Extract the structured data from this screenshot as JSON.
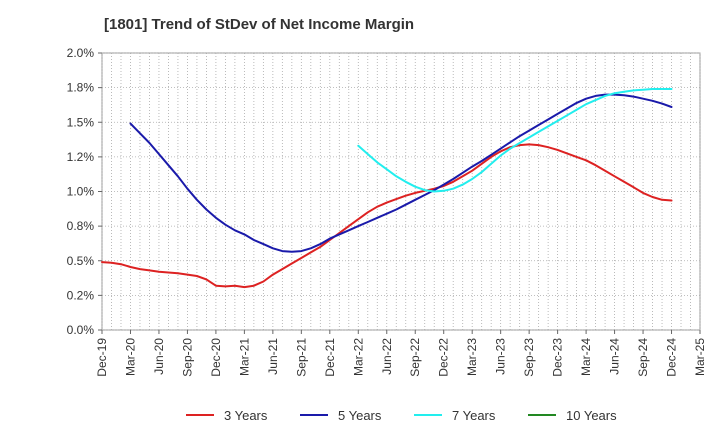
{
  "chart_data": {
    "type": "line",
    "title": "[1801]  Trend of StDev of Net Income Margin",
    "xlabel": "",
    "ylabel": "",
    "x_ticks": [
      "Dec-19",
      "Mar-20",
      "Jun-20",
      "Sep-20",
      "Dec-20",
      "Mar-21",
      "Jun-21",
      "Sep-21",
      "Dec-21",
      "Mar-22",
      "Jun-22",
      "Sep-22",
      "Dec-22",
      "Mar-23",
      "Jun-23",
      "Sep-23",
      "Dec-23",
      "Mar-24",
      "Jun-24",
      "Sep-24",
      "Dec-24",
      "Mar-25"
    ],
    "y_ticks": [
      "0.0%",
      "0.2%",
      "0.5%",
      "0.8%",
      "1.0%",
      "1.2%",
      "1.5%",
      "1.8%",
      "2.0%"
    ],
    "ylim": [
      0,
      2.0
    ],
    "grid": true,
    "legend_position": "bottom",
    "series": [
      {
        "name": "3 Years",
        "color": "#dd2222",
        "x": [
          "Dec-19",
          "Jan-20",
          "Feb-20",
          "Mar-20",
          "Apr-20",
          "May-20",
          "Jun-20",
          "Jul-20",
          "Aug-20",
          "Sep-20",
          "Oct-20",
          "Nov-20",
          "Dec-20",
          "Jan-21",
          "Feb-21",
          "Mar-21",
          "Apr-21",
          "May-21",
          "Jun-21",
          "Jul-21",
          "Aug-21",
          "Sep-21",
          "Oct-21",
          "Nov-21",
          "Dec-21",
          "Jan-22",
          "Feb-22",
          "Mar-22",
          "Apr-22",
          "May-22",
          "Jun-22",
          "Jul-22",
          "Aug-22",
          "Sep-22",
          "Oct-22",
          "Nov-22",
          "Dec-22",
          "Jan-23",
          "Feb-23",
          "Mar-23",
          "Apr-23",
          "May-23",
          "Jun-23",
          "Jul-23",
          "Aug-23",
          "Sep-23",
          "Oct-23",
          "Nov-23",
          "Dec-23",
          "Jan-24",
          "Feb-24",
          "Mar-24",
          "Apr-24",
          "May-24",
          "Jun-24",
          "Jul-24",
          "Aug-24",
          "Sep-24",
          "Oct-24",
          "Nov-24",
          "Dec-24"
        ],
        "values": [
          0.49,
          0.485,
          0.475,
          0.455,
          0.44,
          0.43,
          0.42,
          0.415,
          0.41,
          0.4,
          0.39,
          0.365,
          0.32,
          0.315,
          0.32,
          0.31,
          0.32,
          0.35,
          0.4,
          0.44,
          0.48,
          0.52,
          0.56,
          0.6,
          0.65,
          0.7,
          0.75,
          0.8,
          0.85,
          0.89,
          0.92,
          0.945,
          0.97,
          0.99,
          1.005,
          1.02,
          1.04,
          1.07,
          1.11,
          1.15,
          1.2,
          1.25,
          1.29,
          1.32,
          1.335,
          1.34,
          1.335,
          1.32,
          1.3,
          1.275,
          1.25,
          1.225,
          1.19,
          1.15,
          1.11,
          1.07,
          1.03,
          0.99,
          0.96,
          0.94,
          0.935
        ]
      },
      {
        "name": "5 Years",
        "color": "#1a1aaa",
        "x": [
          "Mar-20",
          "Apr-20",
          "May-20",
          "Jun-20",
          "Jul-20",
          "Aug-20",
          "Sep-20",
          "Oct-20",
          "Nov-20",
          "Dec-20",
          "Jan-21",
          "Feb-21",
          "Mar-21",
          "Apr-21",
          "May-21",
          "Jun-21",
          "Jul-21",
          "Aug-21",
          "Sep-21",
          "Oct-21",
          "Nov-21",
          "Dec-21",
          "Jan-22",
          "Feb-22",
          "Mar-22",
          "Apr-22",
          "May-22",
          "Jun-22",
          "Jul-22",
          "Aug-22",
          "Sep-22",
          "Oct-22",
          "Nov-22",
          "Dec-22",
          "Jan-23",
          "Feb-23",
          "Mar-23",
          "Apr-23",
          "May-23",
          "Jun-23",
          "Jul-23",
          "Aug-23",
          "Sep-23",
          "Oct-23",
          "Nov-23",
          "Dec-23",
          "Jan-24",
          "Feb-24",
          "Mar-24",
          "Apr-24",
          "May-24",
          "Jun-24",
          "Jul-24",
          "Aug-24",
          "Sep-24",
          "Oct-24",
          "Nov-24",
          "Dec-24"
        ],
        "values": [
          1.49,
          1.42,
          1.35,
          1.27,
          1.19,
          1.11,
          1.02,
          0.94,
          0.87,
          0.81,
          0.76,
          0.72,
          0.69,
          0.65,
          0.62,
          0.59,
          0.57,
          0.565,
          0.57,
          0.59,
          0.62,
          0.66,
          0.69,
          0.72,
          0.75,
          0.78,
          0.81,
          0.84,
          0.87,
          0.905,
          0.94,
          0.975,
          1.01,
          1.05,
          1.09,
          1.135,
          1.18,
          1.22,
          1.265,
          1.31,
          1.355,
          1.4,
          1.44,
          1.48,
          1.52,
          1.56,
          1.6,
          1.64,
          1.67,
          1.69,
          1.7,
          1.7,
          1.695,
          1.685,
          1.67,
          1.655,
          1.635,
          1.61
        ]
      },
      {
        "name": "7 Years",
        "color": "#22eeee",
        "x": [
          "Mar-22",
          "Apr-22",
          "May-22",
          "Jun-22",
          "Jul-22",
          "Aug-22",
          "Sep-22",
          "Oct-22",
          "Nov-22",
          "Dec-22",
          "Jan-23",
          "Feb-23",
          "Mar-23",
          "Apr-23",
          "May-23",
          "Jun-23",
          "Jul-23",
          "Aug-23",
          "Sep-23",
          "Oct-23",
          "Nov-23",
          "Dec-23",
          "Jan-24",
          "Feb-24",
          "Mar-24",
          "Apr-24",
          "May-24",
          "Jun-24",
          "Jul-24",
          "Aug-24",
          "Sep-24",
          "Oct-24",
          "Nov-24",
          "Dec-24"
        ],
        "values": [
          1.33,
          1.27,
          1.21,
          1.16,
          1.11,
          1.07,
          1.035,
          1.01,
          1.0,
          1.005,
          1.02,
          1.05,
          1.09,
          1.14,
          1.2,
          1.26,
          1.31,
          1.35,
          1.39,
          1.43,
          1.47,
          1.51,
          1.55,
          1.59,
          1.63,
          1.66,
          1.69,
          1.71,
          1.72,
          1.73,
          1.735,
          1.74,
          1.74,
          1.74
        ]
      },
      {
        "name": "10 Years",
        "color": "#228822",
        "x": [],
        "values": []
      }
    ]
  }
}
